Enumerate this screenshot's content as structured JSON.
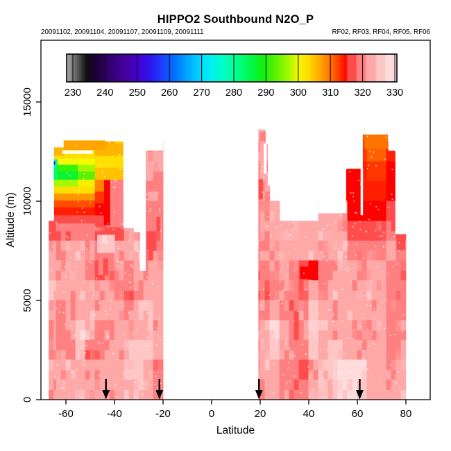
{
  "title": "HIPPO2 Southbound N2O_P",
  "subtitle_left": "20091102, 20091104, 20091107, 20091109, 20091111",
  "subtitle_right": "RF02, RF03, RF04, RF05, RF06",
  "chart_data": {
    "type": "heatmap",
    "title": "HIPPO2 Southbound N2O_P",
    "xlabel": "Latitude",
    "ylabel": "Altitude (m)",
    "xlim": [
      -70,
      90
    ],
    "ylim": [
      0,
      18100
    ],
    "x_ticks": [
      -60,
      -40,
      -20,
      0,
      20,
      40,
      60,
      80
    ],
    "y_ticks": [
      0,
      5000,
      10000,
      15000
    ],
    "grid_on": false,
    "colorbar": {
      "ticks": [
        230,
        240,
        250,
        260,
        270,
        280,
        290,
        300,
        310,
        320,
        330
      ],
      "range": [
        228,
        331
      ],
      "position": "top-inside"
    },
    "palette_stops": [
      [
        228,
        "#a8a8a8"
      ],
      [
        231,
        "#606060"
      ],
      [
        234,
        "#101010"
      ],
      [
        237,
        "#1c0038"
      ],
      [
        241,
        "#32006e"
      ],
      [
        246,
        "#46009b"
      ],
      [
        250,
        "#4400cd"
      ],
      [
        254,
        "#2d16f0"
      ],
      [
        258,
        "#1a43ff"
      ],
      [
        262,
        "#0077ff"
      ],
      [
        266,
        "#00acff"
      ],
      [
        270,
        "#00dcff"
      ],
      [
        273,
        "#00f2ef"
      ],
      [
        277,
        "#00ffc2"
      ],
      [
        281,
        "#00ff8a"
      ],
      [
        285,
        "#00fa50"
      ],
      [
        289,
        "#12ef12"
      ],
      [
        293,
        "#5cf200"
      ],
      [
        297,
        "#a4f800"
      ],
      [
        300,
        "#f2f900"
      ],
      [
        303,
        "#ffdf00"
      ],
      [
        306,
        "#ffb400"
      ],
      [
        309,
        "#ff8500"
      ],
      [
        312,
        "#ff4e00"
      ],
      [
        314,
        "#ff1e00"
      ],
      [
        315,
        "#ff0000"
      ],
      [
        315.5,
        "#ff4d4d"
      ],
      [
        318,
        "#ff4d4d"
      ],
      [
        318.5,
        "#ff8080"
      ],
      [
        321,
        "#ff8080"
      ],
      [
        321.5,
        "#ffa8a8"
      ],
      [
        324,
        "#ffa8a8"
      ],
      [
        324.5,
        "#ffc6c6"
      ],
      [
        327,
        "#ffc6c6"
      ],
      [
        327.5,
        "#ffdcdc"
      ],
      [
        330,
        "#ffdcdc"
      ],
      [
        331,
        "#ffeaea"
      ]
    ],
    "grid": {
      "lat_start": -68,
      "lat_step": 4,
      "alt_top": 14000,
      "alt_step": 1000,
      "lat_clip": [
        -67,
        80
      ],
      "values_top_to_bottom": [
        [
          null,
          null,
          null,
          null,
          null,
          null,
          null,
          null,
          null,
          null,
          null,
          null,
          null,
          null,
          null,
          null,
          null,
          null,
          null,
          null,
          null,
          322,
          322,
          null,
          null,
          null,
          null,
          null,
          null,
          null,
          null,
          null,
          312,
          310,
          310,
          null,
          null
        ],
        [
          null,
          305,
          304,
          305,
          306,
          307,
          307,
          304,
          null,
          null,
          322,
          322,
          null,
          null,
          null,
          null,
          null,
          null,
          null,
          null,
          null,
          322,
          323,
          null,
          null,
          null,
          null,
          null,
          null,
          null,
          null,
          null,
          313,
          311,
          311,
          314,
          null
        ],
        [
          null,
          287,
          288,
          291,
          295,
          300,
          302,
          303,
          null,
          null,
          322,
          321,
          null,
          null,
          null,
          null,
          null,
          null,
          null,
          null,
          null,
          319,
          322,
          null,
          null,
          null,
          null,
          null,
          null,
          null,
          null,
          316,
          314,
          313,
          313,
          315,
          null
        ],
        [
          null,
          304,
          305,
          305,
          306,
          308,
          310,
          312,
          null,
          null,
          321,
          321,
          null,
          null,
          null,
          null,
          null,
          null,
          null,
          null,
          null,
          318,
          321,
          null,
          null,
          null,
          null,
          null,
          null,
          null,
          null,
          315,
          314,
          314,
          314,
          315,
          null
        ],
        [
          null,
          313,
          314,
          314,
          315,
          315,
          316,
          316,
          null,
          null,
          320,
          320,
          null,
          null,
          null,
          null,
          null,
          null,
          null,
          null,
          null,
          320,
          322,
          323,
          null,
          null,
          null,
          null,
          323,
          322,
          321,
          315,
          315,
          315,
          315,
          316,
          null
        ],
        [
          317,
          318,
          318,
          319,
          319,
          318,
          316,
          316,
          322,
          322,
          319,
          320,
          null,
          null,
          null,
          null,
          null,
          null,
          null,
          null,
          null,
          321,
          322,
          323,
          324,
          323,
          322,
          323,
          324,
          323,
          322,
          317,
          316,
          316,
          317,
          318,
          316
        ],
        [
          322,
          321,
          323,
          324,
          322,
          319,
          320,
          322,
          323,
          324,
          318,
          321,
          null,
          null,
          null,
          null,
          null,
          null,
          null,
          null,
          null,
          320,
          321,
          322,
          323,
          322,
          323,
          324,
          322,
          323,
          324,
          320,
          319,
          320,
          321,
          322,
          321
        ],
        [
          323,
          322,
          324,
          323,
          320,
          317,
          319,
          321,
          320,
          323,
          321,
          322,
          null,
          null,
          null,
          null,
          null,
          null,
          null,
          null,
          null,
          318,
          319,
          321,
          322,
          320,
          316,
          315,
          319,
          321,
          323,
          322,
          321,
          322,
          323,
          321,
          318
        ],
        [
          324,
          323,
          322,
          324,
          323,
          321,
          322,
          320,
          319,
          321,
          323,
          324,
          null,
          null,
          null,
          null,
          null,
          null,
          null,
          null,
          null,
          319,
          318,
          320,
          322,
          321,
          319,
          322,
          320,
          324,
          323,
          322,
          323,
          324,
          322,
          320,
          319
        ],
        [
          322,
          320,
          321,
          323,
          324,
          322,
          323,
          322,
          321,
          324,
          325,
          323,
          null,
          null,
          null,
          null,
          null,
          null,
          null,
          null,
          null,
          320,
          321,
          322,
          320,
          318,
          321,
          326,
          323,
          321,
          322,
          324,
          323,
          321,
          323,
          321,
          320
        ],
        [
          321,
          319,
          322,
          327,
          324,
          320,
          321,
          323,
          322,
          323,
          324,
          322,
          null,
          null,
          null,
          null,
          null,
          null,
          null,
          null,
          null,
          322,
          324,
          327,
          323,
          318,
          322,
          327,
          324,
          322,
          323,
          322,
          321,
          322,
          324,
          319,
          321
        ],
        [
          322,
          321,
          320,
          325,
          319,
          319,
          321,
          322,
          324,
          326,
          325,
          323,
          null,
          null,
          null,
          null,
          null,
          null,
          null,
          null,
          null,
          321,
          323,
          326,
          322,
          321,
          320,
          326,
          323,
          325,
          324,
          323,
          322,
          323,
          322,
          320,
          322
        ],
        [
          323,
          322,
          324,
          323,
          321,
          322,
          323,
          324,
          325,
          327,
          324,
          319,
          null,
          null,
          null,
          null,
          null,
          null,
          null,
          null,
          null,
          322,
          324,
          323,
          319,
          320,
          318,
          322,
          324,
          326,
          329,
          329,
          328,
          324,
          323,
          321,
          323
        ],
        [
          322,
          323,
          322,
          324,
          322,
          321,
          322,
          323,
          324,
          325,
          323,
          320,
          null,
          null,
          null,
          null,
          null,
          null,
          null,
          null,
          null,
          323,
          322,
          324,
          321,
          319,
          320,
          323,
          325,
          324,
          327,
          328,
          326,
          323,
          322,
          322,
          324
        ]
      ]
    },
    "overlay_patches": [
      [
        -64.8,
        -48,
        8900,
        9300,
        316
      ],
      [
        -64.8,
        -48,
        9300,
        9700,
        314
      ],
      [
        -64.8,
        -48,
        9700,
        10050,
        312
      ],
      [
        -64.8,
        -48,
        10050,
        10400,
        308
      ],
      [
        -64.8,
        -48,
        10400,
        10750,
        303
      ],
      [
        -64.8,
        -55,
        10750,
        11100,
        297
      ],
      [
        -55,
        -48,
        10750,
        11100,
        301
      ],
      [
        -64.8,
        -55,
        11100,
        11500,
        287
      ],
      [
        -55,
        -48,
        11100,
        11500,
        293
      ],
      [
        -64.8,
        -55,
        11500,
        11850,
        291
      ],
      [
        -55,
        -48,
        11500,
        11850,
        297
      ],
      [
        -64.8,
        -48,
        11850,
        12150,
        300
      ],
      [
        -64.8,
        -48,
        12150,
        12600,
        303
      ],
      [
        -48,
        -43.5,
        8700,
        9300,
        316
      ],
      [
        -48,
        -43.5,
        9300,
        9900,
        315
      ],
      [
        -48,
        -43.5,
        9900,
        10500,
        313
      ],
      [
        -48,
        -43.5,
        10500,
        11100,
        309
      ],
      [
        -43.5,
        -36.3,
        8700,
        11100,
        320
      ],
      [
        -44.2,
        -41.9,
        8800,
        11050,
        315
      ],
      [
        -48,
        -36.3,
        11100,
        11700,
        305
      ],
      [
        -48,
        -36.3,
        11700,
        12300,
        303
      ],
      [
        -48,
        -36.3,
        12300,
        12900,
        306
      ],
      [
        -61,
        -43.8,
        12600,
        13050,
        307
      ],
      [
        -64.8,
        -61,
        12300,
        12720,
        306
      ],
      [
        -64.9,
        -63.6,
        11100,
        12100,
        283
      ],
      [
        -64.9,
        -64.4,
        11750,
        12080,
        272
      ],
      [
        -64.9,
        -64.55,
        11850,
        12000,
        247
      ],
      [
        -47,
        -40,
        7400,
        8300,
        327
      ],
      [
        -46.5,
        -42,
        6300,
        7100,
        318
      ],
      [
        -26.6,
        -21.3,
        7500,
        9200,
        318
      ],
      [
        36.5,
        43,
        6100,
        6700,
        315
      ],
      [
        19.2,
        21,
        10100,
        11100,
        318
      ],
      [
        55.5,
        61.3,
        10000,
        11600,
        315
      ],
      [
        63,
        72.5,
        12650,
        13360,
        310
      ],
      [
        76.3,
        79.6,
        7550,
        8350,
        316
      ]
    ],
    "erase_regions": [
      [
        -66,
        -61,
        12720,
        14200
      ],
      [
        -61.5,
        -49,
        12400,
        12550
      ],
      [
        -29.5,
        -27.2,
        6500,
        14200
      ],
      [
        -28,
        -20,
        12560,
        14200
      ],
      [
        8,
        19.2,
        0,
        14200
      ],
      [
        22.3,
        26,
        12900,
        14200
      ],
      [
        23.2,
        26,
        10800,
        12900
      ],
      [
        21.5,
        22.6,
        11400,
        12900
      ],
      [
        16,
        26,
        13620,
        14200
      ],
      [
        44,
        55.5,
        9400,
        10050
      ],
      [
        52,
        62.2,
        11650,
        14200
      ],
      [
        61.4,
        62.3,
        9300,
        11650
      ],
      [
        75.7,
        80.5,
        8350,
        14200
      ],
      [
        72.8,
        76,
        12550,
        14200
      ],
      [
        -36.3,
        -32,
        8650,
        14200
      ],
      [
        -32,
        -27.2,
        8450,
        14200
      ],
      [
        56,
        80,
        13370,
        14200
      ]
    ],
    "arrow_latitudes": [
      -43.5,
      -21.5,
      19.5,
      61
    ],
    "track_dots": {
      "count": 430,
      "seed": 99,
      "color": "#ffffff"
    },
    "texture": {
      "jitter": 1.3,
      "sub_lat": 2,
      "sub_alt": 500
    }
  }
}
